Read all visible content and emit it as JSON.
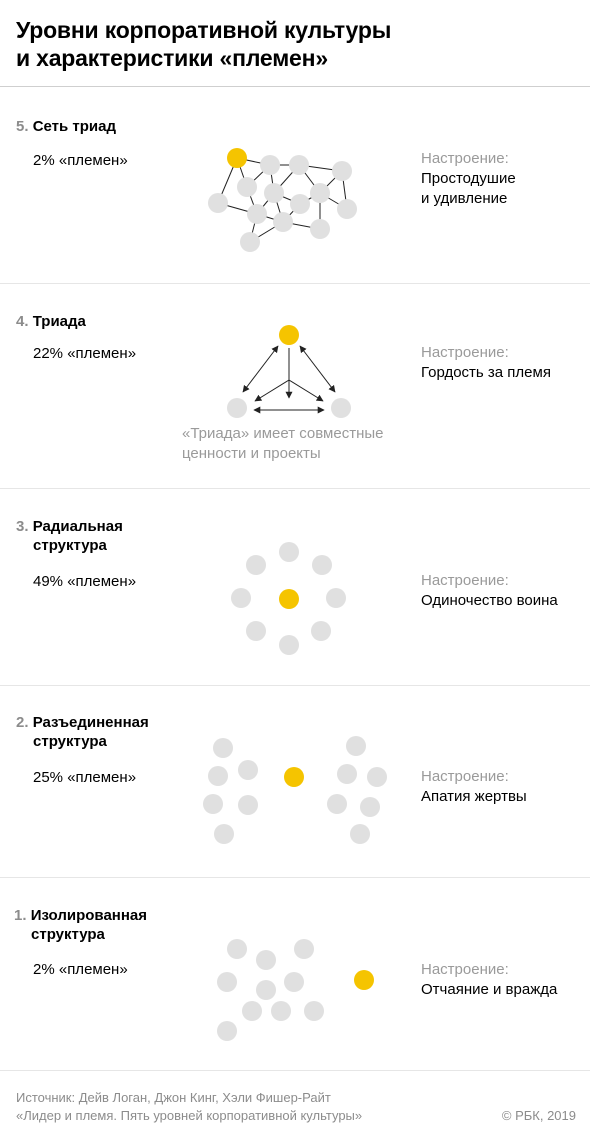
{
  "title": {
    "line1": "Уровни корпоративной культуры",
    "line2": "и характеристики «племен»"
  },
  "mood_label": "Настроение:",
  "colors": {
    "node": "#e0e0e0",
    "key_node": "#f5c400",
    "muted_text": "#9a9a9a",
    "divider": "#e6e6e6"
  },
  "levels": [
    {
      "number": "5.",
      "name_line1": "Сеть триад",
      "name_line2": "",
      "share": "2% «племен»",
      "mood_line1": "Простодушие",
      "mood_line2": "и удивление",
      "diagram": "network-of-triads"
    },
    {
      "number": "4.",
      "name_line1": "Триада",
      "name_line2": "",
      "share": "22% «племен»",
      "mood_line1": "Гордость за племя",
      "mood_line2": "",
      "caption_line1": "«Триада» имеет совместные",
      "caption_line2": "ценности и проекты",
      "diagram": "triad"
    },
    {
      "number": "3.",
      "name_line1": "Радиальная",
      "name_line2": "структура",
      "share": "49% «племен»",
      "mood_line1": "Одиночество воина",
      "mood_line2": "",
      "diagram": "radial-structure"
    },
    {
      "number": "2.",
      "name_line1": "Разъединенная",
      "name_line2": "структура",
      "share": "25% «племен»",
      "mood_line1": "Апатия жертвы",
      "mood_line2": "",
      "diagram": "disconnected-structure"
    },
    {
      "number": "1.",
      "name_line1": "Изолированная",
      "name_line2": "структура",
      "share": "2% «племен»",
      "mood_line1": "Отчаяние и вражда",
      "mood_line2": "",
      "diagram": "isolated-structure"
    }
  ],
  "source": {
    "line1": "Источник: Дейв Логан, Джон Кинг, Хэли Фишер-Райт",
    "line2": "«Лидер и племя. Пять уровней корпоративной культуры»"
  },
  "copyright": "© РБК, 2019"
}
